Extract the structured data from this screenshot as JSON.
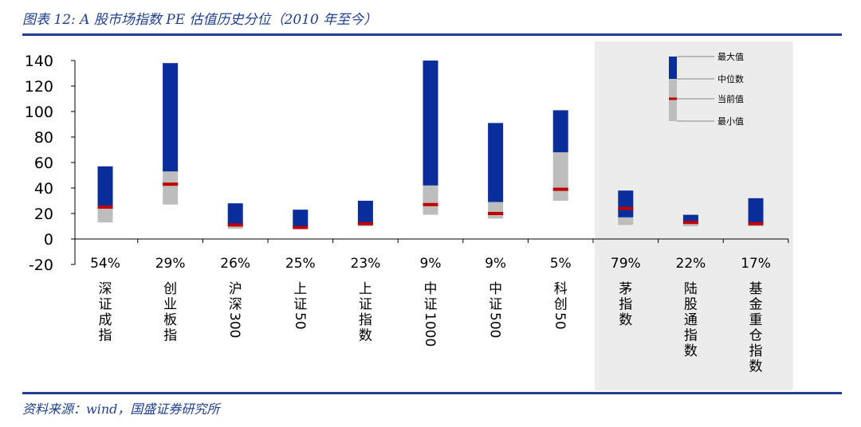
{
  "figure": {
    "title": "图表 12: A 股市场指数 PE 估值历史分位（2010 年至今）",
    "source": "资料来源：wind，国盛证券研究所"
  },
  "colors": {
    "upper": "#0a2e99",
    "lower": "#bdbdbd",
    "current": "#c00000",
    "shade": "#ececec",
    "rule": "#1f3f8f"
  },
  "chart_data": {
    "type": "bar",
    "title": "A 股市场指数 PE 估值历史分位（2010 年至今）",
    "ylim": [
      -20,
      140
    ],
    "yticks": [
      140,
      120,
      100,
      80,
      60,
      40,
      20,
      0,
      -20
    ],
    "categories": [
      "深证成指",
      "创业板指",
      "沪深300",
      "上证50",
      "上证指数",
      "中证1000",
      "中证500",
      "科创50",
      "茅指数",
      "陆股通指数",
      "基金重仓指数"
    ],
    "percentiles": [
      "54%",
      "29%",
      "26%",
      "25%",
      "23%",
      "9%",
      "9%",
      "5%",
      "79%",
      "22%",
      "17%"
    ],
    "series": [
      {
        "name": "最大值",
        "values": [
          57,
          138,
          28,
          23,
          30,
          140,
          91,
          101,
          38,
          19,
          32
        ]
      },
      {
        "name": "中位数",
        "values": [
          24,
          53,
          11,
          9,
          12,
          42,
          29,
          68,
          17,
          14,
          13
        ]
      },
      {
        "name": "当前值",
        "values": [
          25,
          43,
          11,
          9,
          12,
          27,
          20,
          39,
          24,
          13,
          12
        ]
      },
      {
        "name": "最小值",
        "values": [
          13,
          27,
          8,
          8,
          10,
          19,
          16,
          30,
          11,
          10,
          10
        ]
      }
    ],
    "shaded_categories": [
      "茅指数",
      "陆股通指数",
      "基金重仓指数"
    ],
    "legend": {
      "position": "top-right",
      "items": [
        "最大值",
        "中位数",
        "当前值",
        "最小值"
      ]
    }
  }
}
